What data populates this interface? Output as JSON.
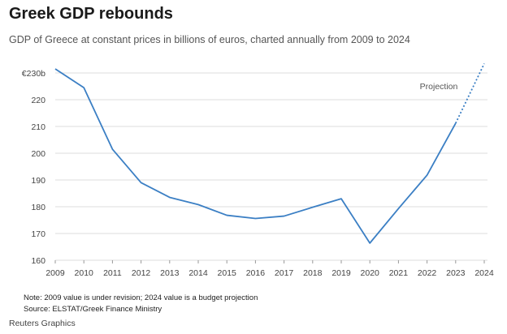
{
  "chart_data": {
    "type": "line",
    "title": "Greek GDP rebounds",
    "subtitle": "GDP of Greece at constant prices in billions of euros, charted annually from 2009 to 2024",
    "x": [
      2009,
      2010,
      2011,
      2012,
      2013,
      2014,
      2015,
      2016,
      2017,
      2018,
      2019,
      2020,
      2021,
      2022,
      2023,
      2024
    ],
    "series": [
      {
        "values": [
          231.5,
          224.5,
          201.5,
          189,
          183.5,
          180.8,
          176.8,
          175.6,
          176.5,
          179.8,
          183,
          166.4,
          179.3,
          191.8,
          211.2,
          233.5
        ],
        "projected_from_index": 14,
        "color": "#3b7fc4"
      }
    ],
    "ylim": [
      160,
      230
    ],
    "y_ticks": [
      {
        "value": 230,
        "label": "€230b"
      },
      {
        "value": 220,
        "label": "220"
      },
      {
        "value": 210,
        "label": "210"
      },
      {
        "value": 200,
        "label": "200"
      },
      {
        "value": 190,
        "label": "190"
      },
      {
        "value": 180,
        "label": "180"
      },
      {
        "value": 170,
        "label": "170"
      },
      {
        "value": 160,
        "label": "160"
      }
    ],
    "x_tick_labels": [
      "2009",
      "2010",
      "2011",
      "2012",
      "2013",
      "2014",
      "2015",
      "2016",
      "2017",
      "2018",
      "2019",
      "2020",
      "2021",
      "2022",
      "2023",
      "2024"
    ],
    "annotation": "Projection",
    "grid": true,
    "note": "Note: 2009 value is under revision; 2024 value is a budget projection",
    "source": "Source: ELSTAT/Greek Finance Ministry",
    "credit": "Reuters Graphics"
  }
}
